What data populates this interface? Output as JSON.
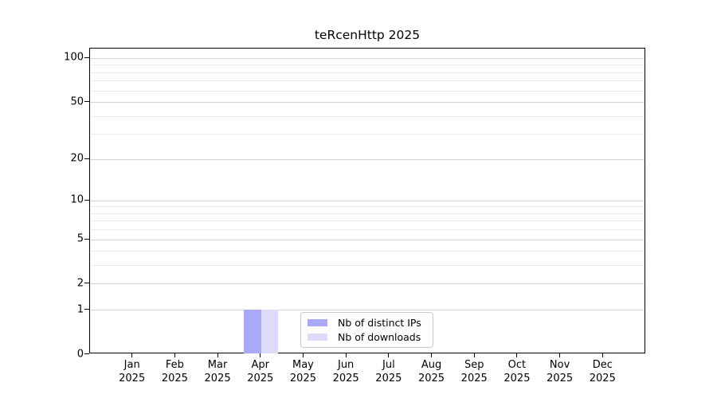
{
  "chart_data": {
    "type": "bar",
    "title": "teRcenHttp 2025",
    "x_tick_labels": [
      {
        "month": "Jan",
        "year": "2025"
      },
      {
        "month": "Feb",
        "year": "2025"
      },
      {
        "month": "Mar",
        "year": "2025"
      },
      {
        "month": "Apr",
        "year": "2025"
      },
      {
        "month": "May",
        "year": "2025"
      },
      {
        "month": "Jun",
        "year": "2025"
      },
      {
        "month": "Jul",
        "year": "2025"
      },
      {
        "month": "Aug",
        "year": "2025"
      },
      {
        "month": "Sep",
        "year": "2025"
      },
      {
        "month": "Oct",
        "year": "2025"
      },
      {
        "month": "Nov",
        "year": "2025"
      },
      {
        "month": "Dec",
        "year": "2025"
      }
    ],
    "y_axis": {
      "scale": "log1p",
      "major_ticks": [
        100,
        50,
        20,
        10,
        5,
        2,
        1,
        0
      ],
      "minor_gridlines": [
        90,
        80,
        70,
        60,
        40,
        30,
        9,
        8,
        7,
        6,
        4,
        3
      ],
      "min": 0,
      "max": 100
    },
    "series": [
      {
        "name": "Nb of distinct IPs",
        "color": "#a9a9f7",
        "values": [
          0,
          0,
          0,
          1,
          0,
          0,
          0,
          0,
          0,
          0,
          0,
          0
        ]
      },
      {
        "name": "Nb of downloads",
        "color": "#dcdcfa",
        "values": [
          0,
          0,
          0,
          1,
          0,
          0,
          0,
          0,
          0,
          0,
          0,
          0
        ]
      }
    ],
    "legend": {
      "position": "bottom-center"
    },
    "colors": {
      "spine": "#000000",
      "grid_major": "#d2d2d2",
      "grid_minor": "#ececec",
      "text": "#000000",
      "background": "#ffffff"
    }
  }
}
